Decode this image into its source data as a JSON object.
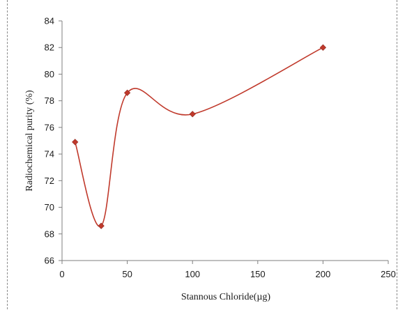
{
  "chart_data": {
    "type": "scatter",
    "xlabel": "Stannous Chloride(µg)",
    "ylabel": "Radiochemical purity (%)",
    "xlim": [
      0,
      250
    ],
    "ylim": [
      66,
      84
    ],
    "xticks": [
      0,
      50,
      100,
      150,
      200,
      250
    ],
    "yticks": [
      66,
      68,
      70,
      72,
      74,
      76,
      78,
      80,
      82,
      84
    ],
    "grid": false,
    "series": [
      {
        "x": [
          10,
          30,
          50,
          100,
          200
        ],
        "y": [
          74.9,
          68.6,
          78.6,
          77.0,
          82.0
        ],
        "line": "smoothed",
        "marker": "diamond",
        "color": "#c0392b"
      }
    ]
  }
}
